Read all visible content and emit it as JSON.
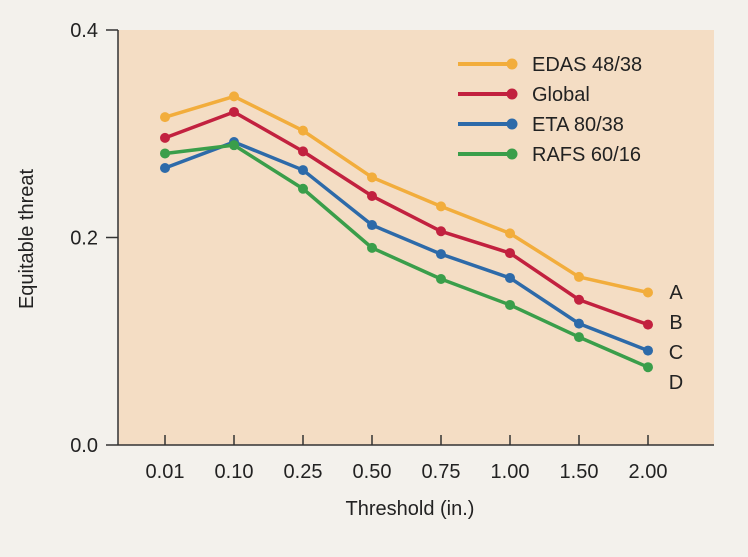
{
  "chart_data": {
    "type": "line",
    "title": "",
    "xlabel": "Threshold (in.)",
    "ylabel": "Equitable threat",
    "categories": [
      "0.01",
      "0.10",
      "0.25",
      "0.50",
      "0.75",
      "1.00",
      "1.50",
      "2.00"
    ],
    "ylim": [
      0.0,
      0.4
    ],
    "yticks": [
      "0.0",
      "0.2",
      "0.4"
    ],
    "grid": false,
    "legend_position": "top-right",
    "series": [
      {
        "name": "EDAS 48/38",
        "color": "#f2ad3c",
        "end_label": "A",
        "values": [
          0.316,
          0.336,
          0.303,
          0.258,
          0.23,
          0.204,
          0.162,
          0.147
        ]
      },
      {
        "name": "Global",
        "color": "#c2213f",
        "end_label": "B",
        "values": [
          0.296,
          0.321,
          0.283,
          0.24,
          0.206,
          0.185,
          0.14,
          0.116
        ]
      },
      {
        "name": "ETA 80/38",
        "color": "#2d6aa9",
        "end_label": "C",
        "values": [
          0.267,
          0.292,
          0.265,
          0.212,
          0.184,
          0.161,
          0.117,
          0.091
        ]
      },
      {
        "name": "RAFS 60/16",
        "color": "#3a9e4a",
        "end_label": "D",
        "values": [
          0.281,
          0.289,
          0.247,
          0.19,
          0.16,
          0.135,
          0.104,
          0.075
        ]
      }
    ]
  },
  "style": {
    "plot_background": "#f4ddc4",
    "page_background": "#f3f1ec",
    "axis_color": "#333333"
  }
}
